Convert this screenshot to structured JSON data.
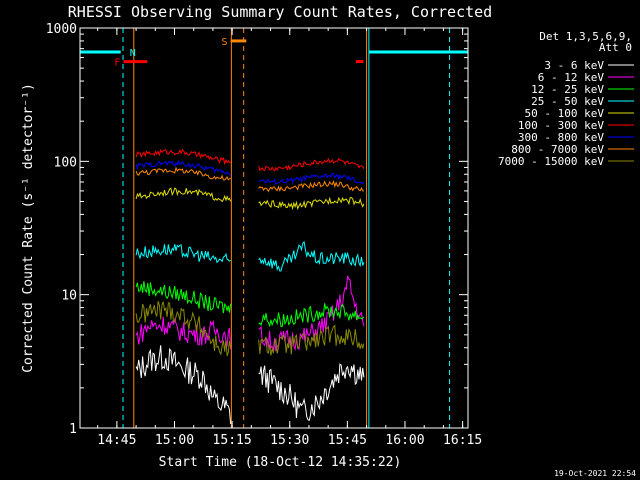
{
  "chart_data": {
    "type": "line",
    "title": "RHESSI Observing Summary Count Rates, Corrected",
    "xlabel": "Start Time (18-Oct-12 14:35:22)",
    "ylabel": "Corrected Count Rate (s⁻¹ detector⁻¹)",
    "yscale": "log",
    "ylim": [
      1,
      1000
    ],
    "xlim_minutes": [
      0,
      101
    ],
    "x_ticks": [
      {
        "label": "14:45",
        "min": 9.6
      },
      {
        "label": "15:00",
        "min": 24.6
      },
      {
        "label": "15:15",
        "min": 39.6
      },
      {
        "label": "15:30",
        "min": 54.6
      },
      {
        "label": "15:45",
        "min": 69.6
      },
      {
        "label": "16:00",
        "min": 84.6
      },
      {
        "label": "16:15",
        "min": 99.6
      }
    ],
    "y_ticks": [
      {
        "label": "1",
        "value": 1
      },
      {
        "label": "10",
        "value": 10
      },
      {
        "label": "100",
        "value": 100
      },
      {
        "label": "1000",
        "value": 1000
      }
    ],
    "legend_header": [
      "Det 1,3,5,6,9,",
      "Att 0"
    ],
    "legend_position": "right",
    "series": [
      {
        "name": "3 - 6 keV",
        "color": "#ffffff",
        "x": [
          14.6,
          18,
          22,
          27,
          32,
          35,
          38,
          39.5,
          46.5,
          50,
          54,
          58,
          62,
          65,
          68,
          70,
          72,
          73.9
        ],
        "y": [
          2.6,
          3.2,
          3.4,
          2.8,
          2.4,
          1.6,
          1.4,
          1.2,
          2.6,
          2.2,
          1.8,
          1.3,
          1.6,
          2.1,
          2.8,
          3.0,
          2.6,
          2.4
        ]
      },
      {
        "name": "6 - 12 keV",
        "color": "#ff00ff",
        "x": [
          14.6,
          18,
          22,
          27,
          32,
          35,
          38,
          39.5,
          46.5,
          50,
          54,
          58,
          62,
          65,
          68,
          70,
          71.5,
          73.9
        ],
        "y": [
          4.8,
          5.8,
          6.0,
          5.2,
          5.0,
          5.4,
          5.0,
          4.6,
          5.0,
          4.4,
          4.6,
          4.7,
          5.5,
          6.5,
          9.0,
          12.5,
          8.5,
          5.8
        ]
      },
      {
        "name": "12 - 25 keV",
        "color": "#00ff00",
        "x": [
          14.6,
          18,
          22,
          27,
          32,
          35,
          38,
          39.5,
          46.5,
          50,
          54,
          58,
          62,
          65,
          68,
          70,
          72,
          73.9
        ],
        "y": [
          11.5,
          11.2,
          10.5,
          10.0,
          8.8,
          8.3,
          8.0,
          7.8,
          6.8,
          6.5,
          6.6,
          6.9,
          7.4,
          7.6,
          7.5,
          7.2,
          7.0,
          6.8
        ]
      },
      {
        "name": "25 - 50 keV",
        "color": "#00ffff",
        "x": [
          14.6,
          18,
          22,
          27,
          32,
          35,
          38,
          39.5,
          46.5,
          50,
          52,
          54,
          56,
          58,
          60,
          62,
          65,
          68,
          70,
          72,
          73.9
        ],
        "y": [
          20.5,
          21.0,
          22.0,
          21.0,
          19.5,
          18.5,
          18.0,
          17.5,
          19.0,
          17.5,
          16.0,
          17.5,
          19.5,
          23.0,
          20.0,
          18.5,
          18.5,
          19.0,
          18.5,
          18.0,
          17.5
        ]
      },
      {
        "name": "50 - 100 keV",
        "color": "#dddd00",
        "x": [
          14.6,
          18,
          22,
          27,
          32,
          35,
          38,
          39.5,
          46.5,
          50,
          54,
          58,
          62,
          65,
          68,
          70,
          72,
          73.9
        ],
        "y": [
          54,
          56,
          59,
          60,
          57,
          54,
          52,
          50,
          48,
          48,
          46,
          47,
          49,
          51,
          52,
          51,
          50,
          48
        ]
      },
      {
        "name": "100 - 300 keV",
        "color": "#ff0000",
        "x": [
          14.6,
          18,
          22,
          27,
          32,
          35,
          38,
          39.5,
          46.5,
          50,
          54,
          58,
          62,
          65,
          68,
          70,
          72,
          73.9
        ],
        "y": [
          112,
          114,
          118,
          117,
          110,
          104,
          100,
          102,
          89,
          88,
          90,
          95,
          99,
          102,
          101,
          96,
          92,
          88
        ]
      },
      {
        "name": "300 - 800 keV",
        "color": "#0000ff",
        "x": [
          14.6,
          18,
          22,
          27,
          32,
          35,
          38,
          39.5,
          46.5,
          50,
          54,
          58,
          62,
          65,
          68,
          70,
          72,
          73.9
        ],
        "y": [
          92,
          94,
          97,
          96,
          90,
          86,
          83,
          80,
          72,
          70,
          71,
          74,
          77,
          78,
          77,
          74,
          71,
          68
        ]
      },
      {
        "name": "800 - 7000 keV",
        "color": "#ff8800",
        "x": [
          14.6,
          18,
          22,
          27,
          32,
          35,
          38,
          39.5,
          46.5,
          50,
          54,
          58,
          62,
          65,
          68,
          70,
          72,
          73.9
        ],
        "y": [
          82,
          83,
          86,
          85,
          80,
          76,
          74,
          72,
          63,
          62,
          63,
          65,
          67,
          68,
          67,
          64,
          62,
          60
        ]
      },
      {
        "name": "7000 - 15000 keV",
        "color": "#888800",
        "x": [
          14.6,
          18,
          22,
          27,
          32,
          35,
          38,
          39.5,
          46.5,
          50,
          54,
          58,
          62,
          65,
          68,
          70,
          72,
          73.9
        ],
        "y": [
          6.8,
          7.4,
          7.8,
          7.0,
          5.5,
          4.3,
          3.9,
          3.7,
          4.2,
          4.1,
          4.2,
          4.3,
          4.6,
          4.9,
          5.0,
          4.8,
          4.6,
          4.3
        ]
      }
    ],
    "flags": [
      {
        "label": "",
        "color": "#00ffff",
        "kind": "bar",
        "x0": 0,
        "x1": 10.6,
        "y": 660
      },
      {
        "label": "",
        "color": "#00ffff",
        "kind": "bar",
        "x0": 75.2,
        "x1": 101,
        "y": 660
      },
      {
        "label": "N",
        "color": "#00ffff",
        "kind": "label",
        "x": 11.9,
        "y": 660
      },
      {
        "label": "F",
        "color": "#ff0000",
        "kind": "bar",
        "x0": 11.3,
        "x1": 17.5,
        "y": 560
      },
      {
        "label": "",
        "color": "#ff0000",
        "kind": "bar",
        "x0": 71.8,
        "x1": 73.8,
        "y": 560
      },
      {
        "label": "S",
        "color": "#ff8800",
        "kind": "bar",
        "x0": 39.2,
        "x1": 43.3,
        "y": 800
      }
    ],
    "vlines": [
      {
        "x": 0,
        "color": "#00ffff",
        "style": "solid"
      },
      {
        "x": 11.2,
        "color": "#00ffff",
        "style": "dashed"
      },
      {
        "x": 75.2,
        "color": "#00ffff",
        "style": "solid"
      },
      {
        "x": 96.2,
        "color": "#00ffff",
        "style": "dashed"
      },
      {
        "x": 14.0,
        "color": "#ff8800",
        "style": "solid"
      },
      {
        "x": 39.4,
        "color": "#ff8800",
        "style": "solid"
      },
      {
        "x": 42.6,
        "color": "#ff8800",
        "style": "dashed"
      },
      {
        "x": 74.6,
        "color": "#ff8800",
        "style": "solid"
      }
    ],
    "footer_date": "19-Oct-2021 22:54"
  }
}
